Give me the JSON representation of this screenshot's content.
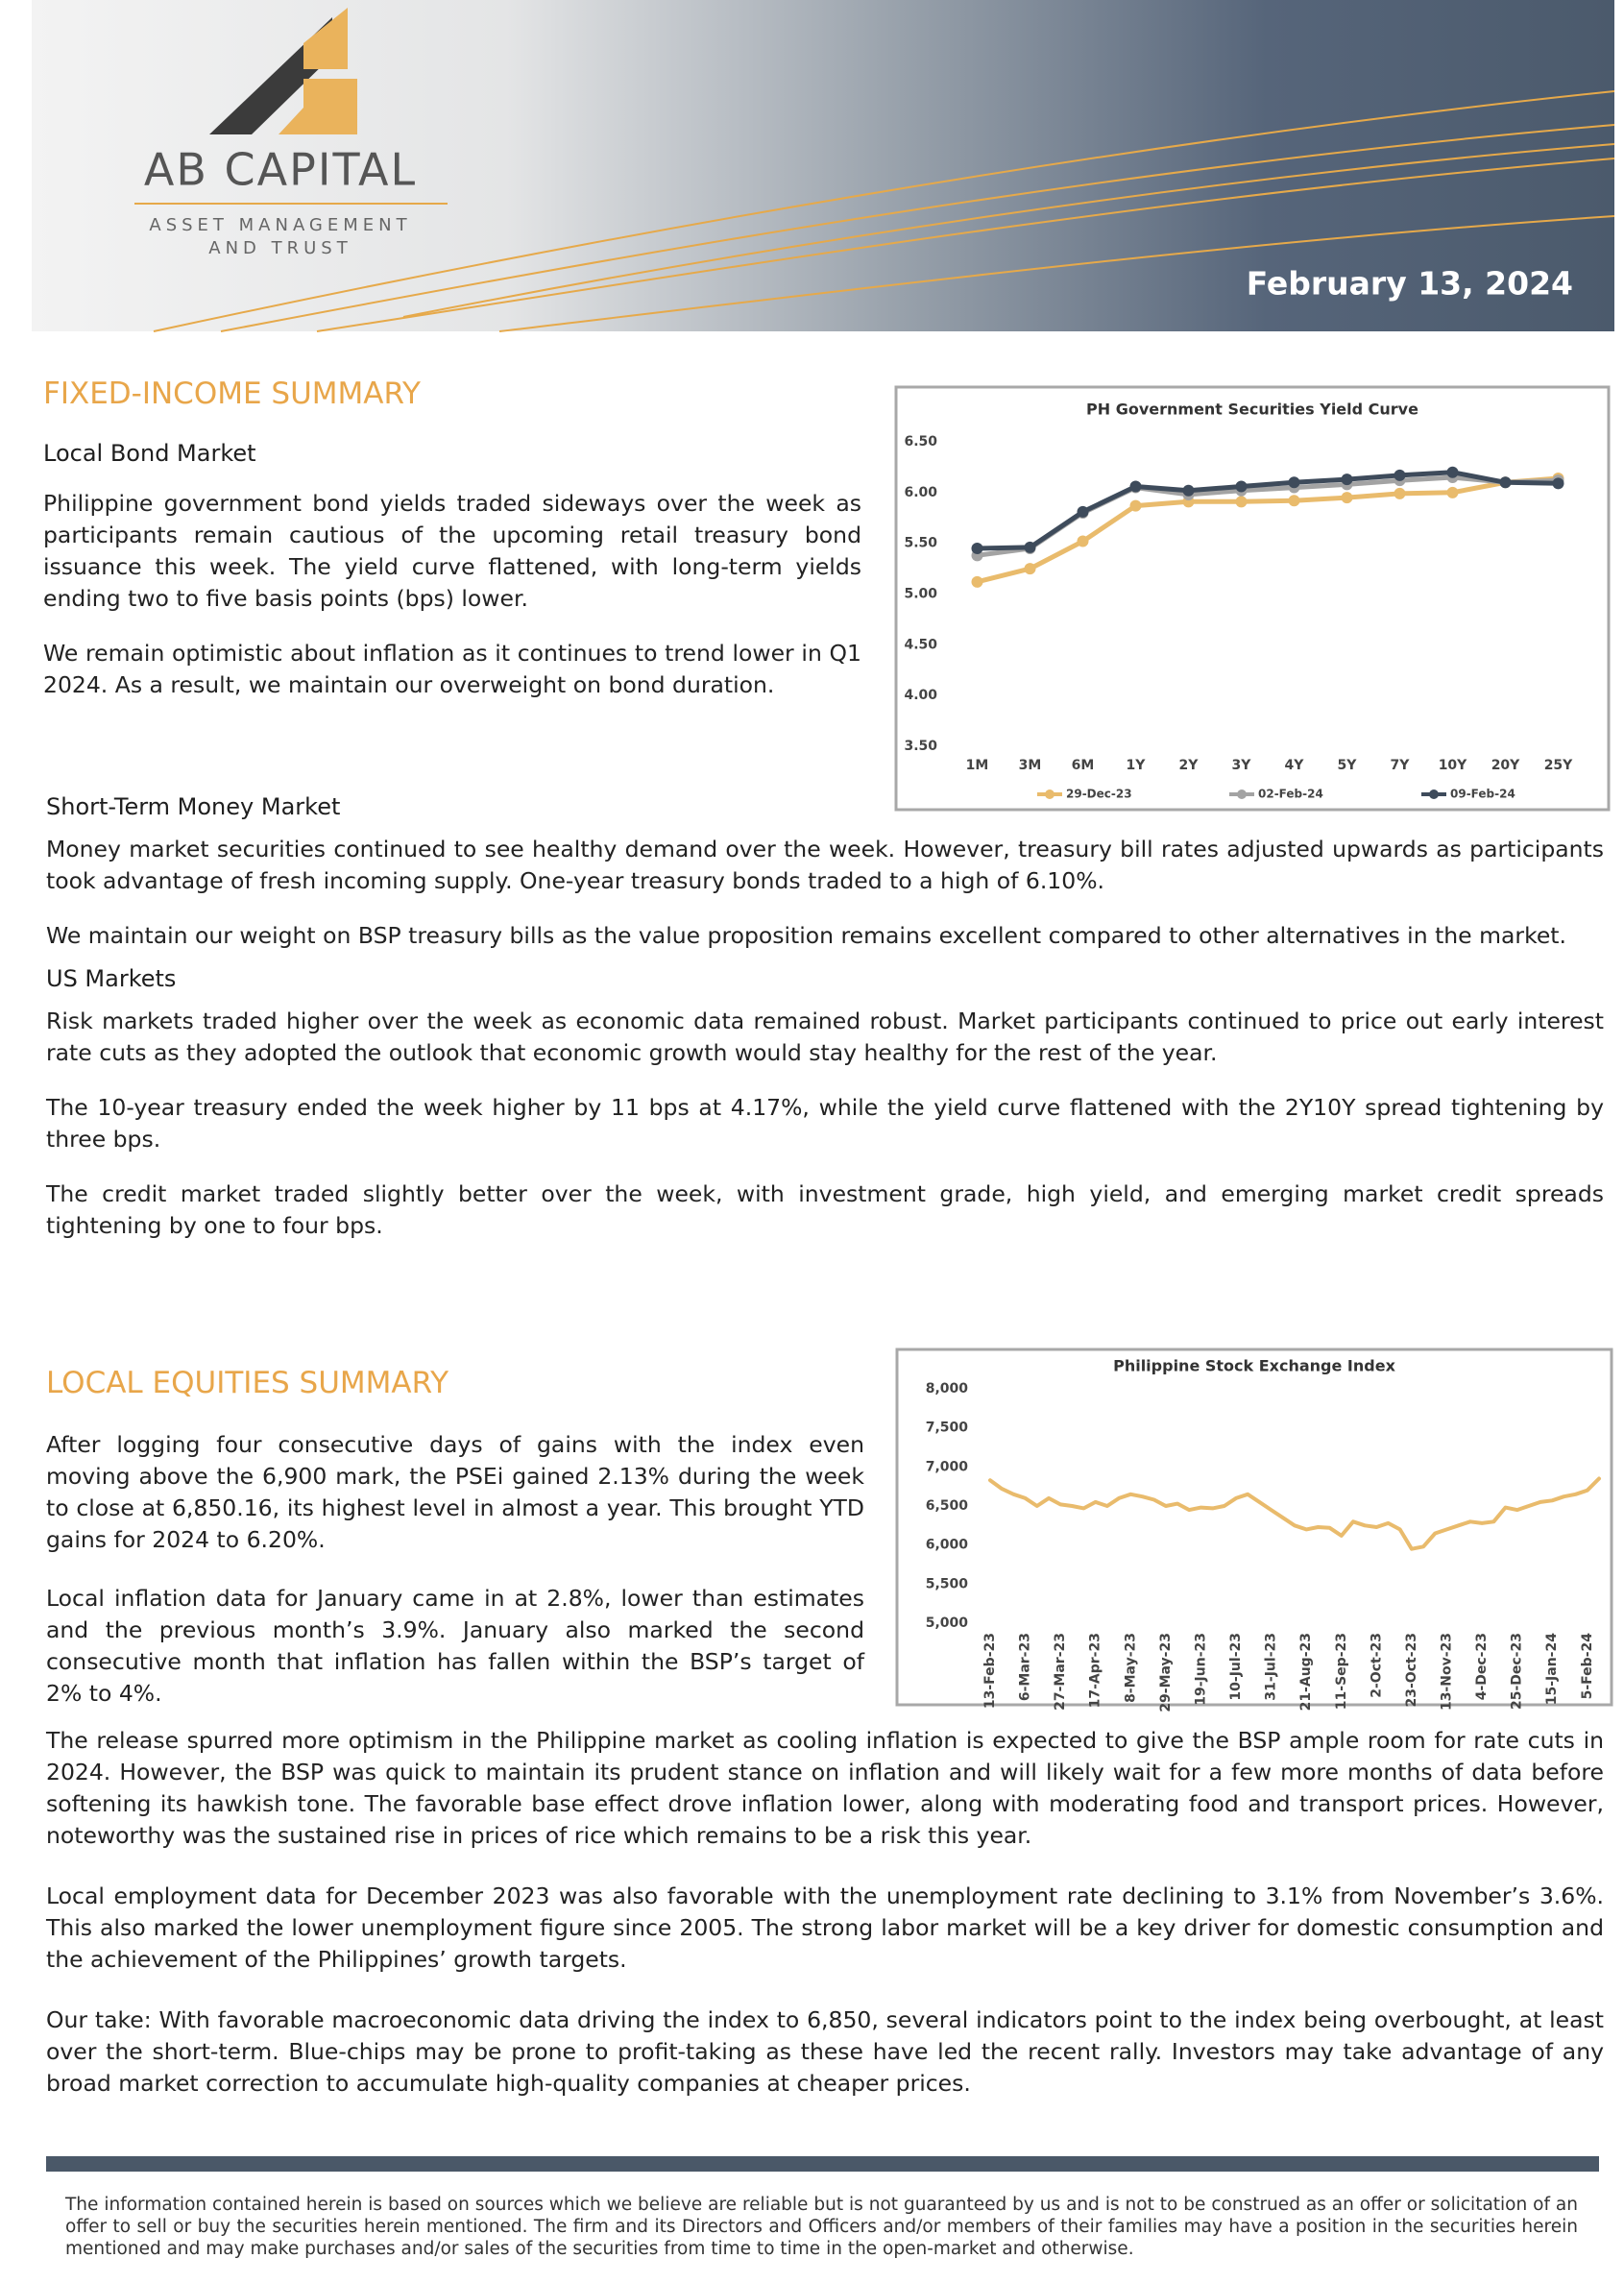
{
  "header": {
    "logo_title": "AB CAPITAL",
    "logo_subtitle_1": "ASSET MANAGEMENT",
    "logo_subtitle_2": "AND TRUST",
    "date": "February 13, 2024"
  },
  "fixed_income": {
    "title": "FIXED-INCOME SUMMARY",
    "local_bond": {
      "heading": "Local Bond Market",
      "paragraphs": [
        "Philippine government bond yields traded sideways over the week as participants remain cautious of the upcoming retail treasury bond issuance this week. The yield curve flattened, with long-term yields ending two to five basis points (bps) lower.",
        "We remain optimistic about inflation as it continues to trend lower in Q1 2024. As a result, we maintain our overweight on bond duration."
      ]
    },
    "money_market": {
      "heading": "Short-Term Money Market",
      "paragraphs": [
        "Money market securities continued to see healthy demand over the week. However, treasury bill rates adjusted upwards as participants took advantage of fresh incoming supply.  One-year treasury bonds traded to a high of 6.10%.",
        "We maintain our weight on BSP treasury bills as the value proposition remains excellent compared to other alternatives in the market."
      ]
    },
    "us_markets": {
      "heading": "US Markets",
      "paragraphs": [
        "Risk markets traded higher over the week as economic data remained robust. Market participants continued to price out early interest rate cuts as they adopted the outlook that economic growth would stay healthy for the rest of the year.",
        "The 10-year treasury ended the week higher by 11 bps at 4.17%, while the yield curve flattened with the 2Y10Y spread tightening by three bps.",
        "The credit market traded slightly better over the week, with investment grade, high yield, and emerging market credit spreads tightening by one to four bps."
      ]
    }
  },
  "local_equities": {
    "title": "LOCAL EQUITIES SUMMARY",
    "paragraphs": [
      "After logging four consecutive days of gains with the index even moving above the 6,900 mark, the PSEi gained 2.13% during the week to close at 6,850.16, its highest level in almost a year.  This brought YTD gains for 2024 to 6.20%.",
      "Local inflation data for January came in at 2.8%, lower than estimates and the previous month’s 3.9%.  January also marked the second consecutive month that inflation has fallen within the BSP’s target of 2% to 4%.",
      "The release spurred more optimism in the Philippine market as cooling inflation is expected to give the BSP ample room for rate cuts in 2024. However, the BSP was quick to maintain its prudent stance on inflation and will likely wait for a few more months of data before softening its hawkish tone. The favorable base effect drove inflation lower, along with moderating food and transport prices. However, noteworthy was the sustained rise in prices of rice which remains to be a risk this year.",
      "Local employment data for December 2023 was also favorable with the unemployment rate declining to 3.1% from November’s 3.6%.  This also marked the lower unemployment figure since 2005.  The strong labor market will be a key driver for domestic consumption and the achievement of the Philippines’ growth targets.",
      "Our take: With favorable macroeconomic data driving the index to 6,850, several indicators point to the index being overbought, at least over the short-term. Blue-chips may be prone to profit-taking as these have led the recent rally. Investors may take advantage of any broad market correction to accumulate high-quality companies at cheaper prices."
    ]
  },
  "footer": {
    "disclaimer": "The information contained herein is based on sources which we believe are reliable but is not guaranteed by us and is not to be construed as an offer or solicitation of an offer to sell or buy the securities herein mentioned. The firm and its Directors and Officers and/or members of their families may have a position in the securities herein mentioned and may make purchases and/or sales of the securities from time to time in the open-market and otherwise."
  },
  "chart_data": [
    {
      "type": "line",
      "title": "PH Government Securities Yield Curve",
      "categories": [
        "1M",
        "3M",
        "6M",
        "1Y",
        "2Y",
        "3Y",
        "4Y",
        "5Y",
        "7Y",
        "10Y",
        "20Y",
        "25Y"
      ],
      "series": [
        {
          "name": "29-Dec-23",
          "color": "#e9bb6c",
          "values": [
            5.12,
            5.25,
            5.52,
            5.87,
            5.91,
            5.91,
            5.92,
            5.95,
            5.99,
            6.0,
            6.1,
            6.14
          ]
        },
        {
          "name": "02-Feb-24",
          "color": "#a3a3a3",
          "values": [
            5.38,
            5.45,
            5.8,
            6.05,
            5.98,
            6.02,
            6.05,
            6.08,
            6.12,
            6.15,
            6.1,
            6.12
          ]
        },
        {
          "name": "09-Feb-24",
          "color": "#3e4b5b",
          "values": [
            5.45,
            5.46,
            5.81,
            6.06,
            6.02,
            6.06,
            6.1,
            6.13,
            6.17,
            6.2,
            6.1,
            6.09
          ]
        }
      ],
      "ylim": [
        3.5,
        6.5
      ],
      "yticks": [
        {
          "value": 3.5,
          "label": "3.50"
        },
        {
          "value": 4,
          "label": "4.00"
        },
        {
          "value": 4.5,
          "label": "4.50"
        },
        {
          "value": 5,
          "label": "5.00"
        },
        {
          "value": 5.5,
          "label": "5.50"
        },
        {
          "value": 6,
          "label": "6.00"
        },
        {
          "value": 6.5,
          "label": "6.50"
        }
      ],
      "markers": true,
      "grid": false,
      "legend": "bottom"
    },
    {
      "type": "line",
      "title": "Philippine Stock Exchange Index",
      "categories": [
        "13-Feb-23",
        null,
        null,
        "6-Mar-23",
        null,
        null,
        "27-Mar-23",
        null,
        null,
        "17-Apr-23",
        null,
        null,
        "8-May-23",
        null,
        null,
        "29-May-23",
        null,
        null,
        "19-Jun-23",
        null,
        null,
        "10-Jul-23",
        null,
        null,
        "31-Jul-23",
        null,
        null,
        "21-Aug-23",
        null,
        null,
        "11-Sep-23",
        null,
        null,
        "2-Oct-23",
        null,
        null,
        "23-Oct-23",
        null,
        null,
        "13-Nov-23",
        null,
        null,
        "4-Dec-23",
        null,
        null,
        "25-Dec-23",
        null,
        null,
        "15-Jan-24",
        null,
        null,
        "5-Feb-24",
        null
      ],
      "values": [
        6830,
        6720,
        6650,
        6600,
        6500,
        6600,
        6520,
        6500,
        6470,
        6550,
        6500,
        6600,
        6650,
        6620,
        6580,
        6500,
        6530,
        6450,
        6480,
        6470,
        6500,
        6600,
        6650,
        6550,
        6450,
        6350,
        6250,
        6200,
        6230,
        6220,
        6120,
        6300,
        6250,
        6230,
        6280,
        6200,
        5950,
        5980,
        6150,
        6200,
        6250,
        6300,
        6280,
        6300,
        6480,
        6450,
        6500,
        6550,
        6570,
        6620,
        6650,
        6700,
        6850
      ],
      "color": "#e9bb6c",
      "ylim": [
        5000,
        8000
      ],
      "yticks": [
        {
          "value": 5000,
          "label": "5,000"
        },
        {
          "value": 5500,
          "label": "5,500"
        },
        {
          "value": 6000,
          "label": "6,000"
        },
        {
          "value": 6500,
          "label": "6,500"
        },
        {
          "value": 7000,
          "label": "7,000"
        },
        {
          "value": 7500,
          "label": "7,500"
        },
        {
          "value": 8000,
          "label": "8,000"
        }
      ],
      "markers": false,
      "grid": false
    }
  ]
}
